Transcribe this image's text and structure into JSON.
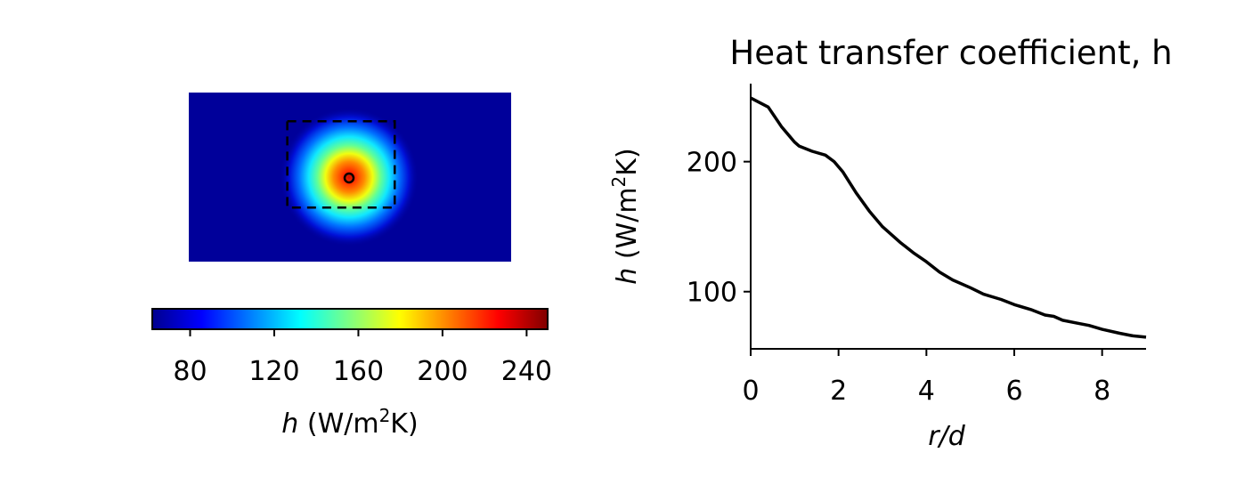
{
  "chart_data": [
    {
      "type": "heatmap",
      "colormap": "jet",
      "colorbar": {
        "label_var": "h",
        "label_unit_pre": "(W/m",
        "label_unit_sup": "2",
        "label_unit_post": "K)",
        "range": [
          62,
          250
        ],
        "ticks": [
          80,
          120,
          160,
          200,
          240
        ],
        "tick_labels": [
          "80",
          "120",
          "160",
          "200",
          "240"
        ]
      },
      "map_extent_rd": {
        "x": [
          -9,
          9
        ],
        "y": [
          -5,
          5
        ]
      },
      "dashed_region_rd": {
        "x": [
          -3.5,
          2.5
        ],
        "y": [
          -1.8,
          3.3
        ]
      },
      "marker_rd": [
        0,
        0
      ]
    },
    {
      "type": "line",
      "title": "Heat transfer coefficient, h",
      "xlabel": "r/d",
      "ylabel_var": "h",
      "ylabel_unit_pre": "(W/m",
      "ylabel_unit_sup": "2",
      "ylabel_unit_post": "K)",
      "xlim": [
        0,
        9
      ],
      "ylim": [
        56,
        260
      ],
      "xticks": [
        0,
        2,
        4,
        6,
        8
      ],
      "xtick_labels": [
        "0",
        "2",
        "4",
        "6",
        "8"
      ],
      "yticks": [
        100,
        200
      ],
      "ytick_labels": [
        "100",
        "200"
      ],
      "line_color": "#000000",
      "series": [
        {
          "x": [
            0,
            0.4,
            0.7,
            1.0,
            1.1,
            1.4,
            1.7,
            1.9,
            2.1,
            2.4,
            2.7,
            3.0,
            3.4,
            3.7,
            4.0,
            4.3,
            4.6,
            5.0,
            5.3,
            5.7,
            6.0,
            6.4,
            6.7,
            6.9,
            7.1,
            7.4,
            7.7,
            8.0,
            8.4,
            8.7,
            9.0
          ],
          "y": [
            249,
            242,
            227,
            215,
            212,
            208,
            205,
            200,
            192,
            176,
            162,
            150,
            138,
            130,
            123,
            115,
            109,
            103,
            98,
            94,
            90,
            86,
            82,
            81,
            78,
            76,
            74,
            71,
            68,
            66,
            65
          ]
        }
      ]
    }
  ]
}
